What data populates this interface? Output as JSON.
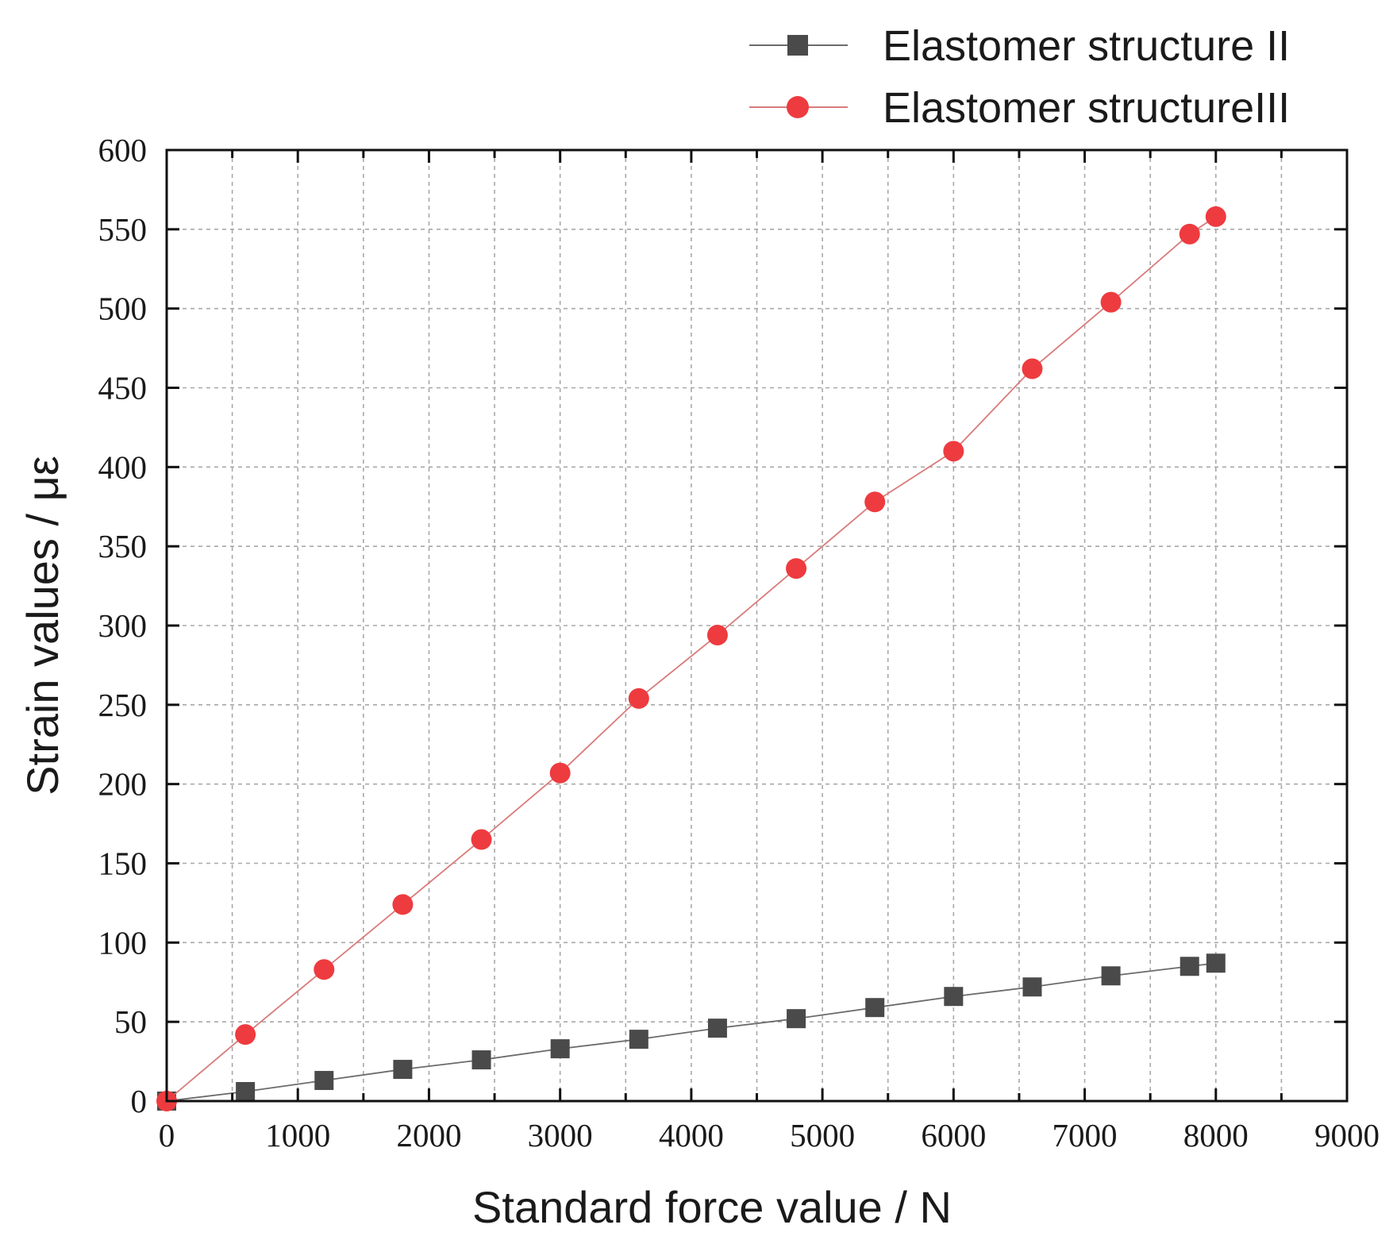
{
  "chart_data": {
    "type": "line",
    "title": "",
    "xlabel": "Standard force value / N",
    "ylabel": "Strain values / με",
    "xlim": [
      0,
      9000
    ],
    "ylim": [
      0,
      600
    ],
    "xticks": [
      0,
      1000,
      2000,
      3000,
      4000,
      5000,
      6000,
      7000,
      8000,
      9000
    ],
    "yticks": [
      0,
      50,
      100,
      150,
      200,
      250,
      300,
      350,
      400,
      450,
      500,
      550,
      600
    ],
    "grid": true,
    "legend_position": "top-right, outside above plot",
    "x": [
      0,
      600,
      1200,
      1800,
      2400,
      3000,
      3600,
      4200,
      4800,
      5400,
      6000,
      6600,
      7200,
      7800,
      8000
    ],
    "series": [
      {
        "name": "Elastomer structure II",
        "marker": "square",
        "color": "#4a4a4a",
        "line_color": "#6b6b6b",
        "values": [
          0,
          6,
          13,
          20,
          26,
          33,
          39,
          46,
          52,
          59,
          66,
          72,
          79,
          85,
          87
        ]
      },
      {
        "name": "Elastomer structureIII",
        "marker": "circle",
        "color": "#ee3b3f",
        "line_color": "#d97b7b",
        "values": [
          0,
          42,
          83,
          124,
          165,
          207,
          254,
          294,
          336,
          378,
          410,
          462,
          504,
          547,
          558
        ]
      }
    ]
  }
}
